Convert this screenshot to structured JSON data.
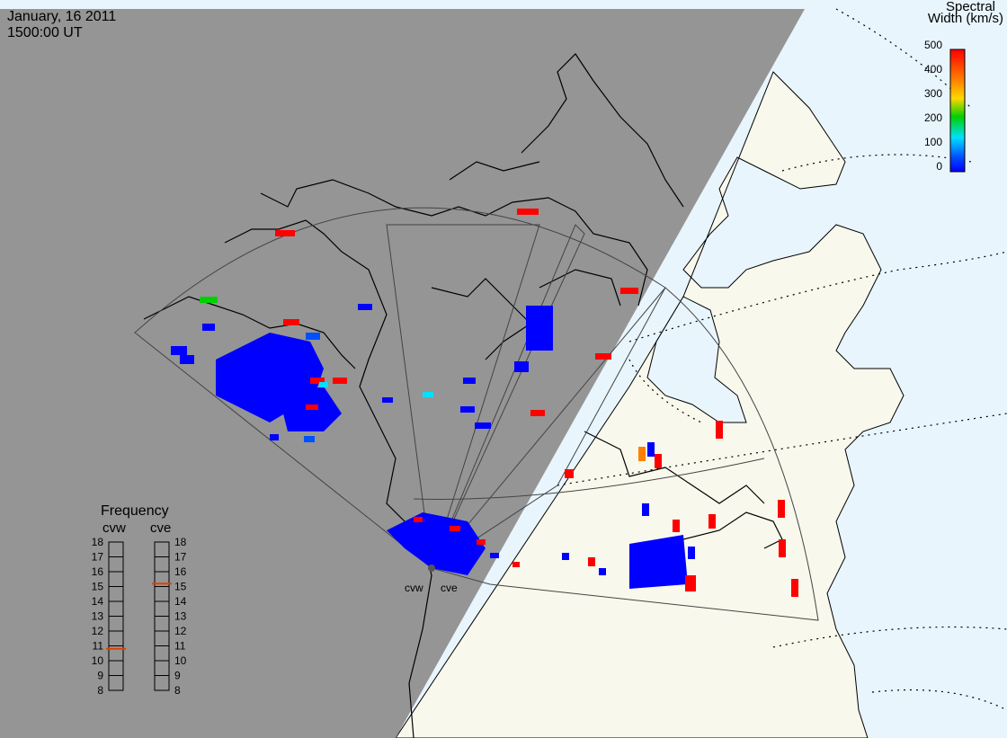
{
  "header": {
    "date": "January, 16 2011",
    "time": "1500:00 UT"
  },
  "scale": {
    "title_line1": "Spectral",
    "title_line2": "Width (km/s)",
    "ticks": [
      "500",
      "400",
      "300",
      "200",
      "100",
      "0"
    ],
    "colors": [
      "#ff0000",
      "#ff8000",
      "#ffd700",
      "#00d000",
      "#00e0ff",
      "#0050ff",
      "#0000ff"
    ]
  },
  "radars": {
    "west": "cvw",
    "east": "cve"
  },
  "frequency": {
    "title": "Frequency",
    "cvw_label": "cvw",
    "cve_label": "cve",
    "ticks": [
      "18",
      "17",
      "16",
      "15",
      "14",
      "13",
      "12",
      "11",
      "10",
      "9",
      "8"
    ],
    "cvw_value": 10.8,
    "cve_value": 15.2,
    "marker_color": "#e04000"
  },
  "colors": {
    "night": "#959595",
    "day_land": "#f9f8ec",
    "day_ocean": "#e8f5fd",
    "coast": "#000000",
    "echo_low": "#0000ff",
    "echo_high": "#ff0000"
  }
}
